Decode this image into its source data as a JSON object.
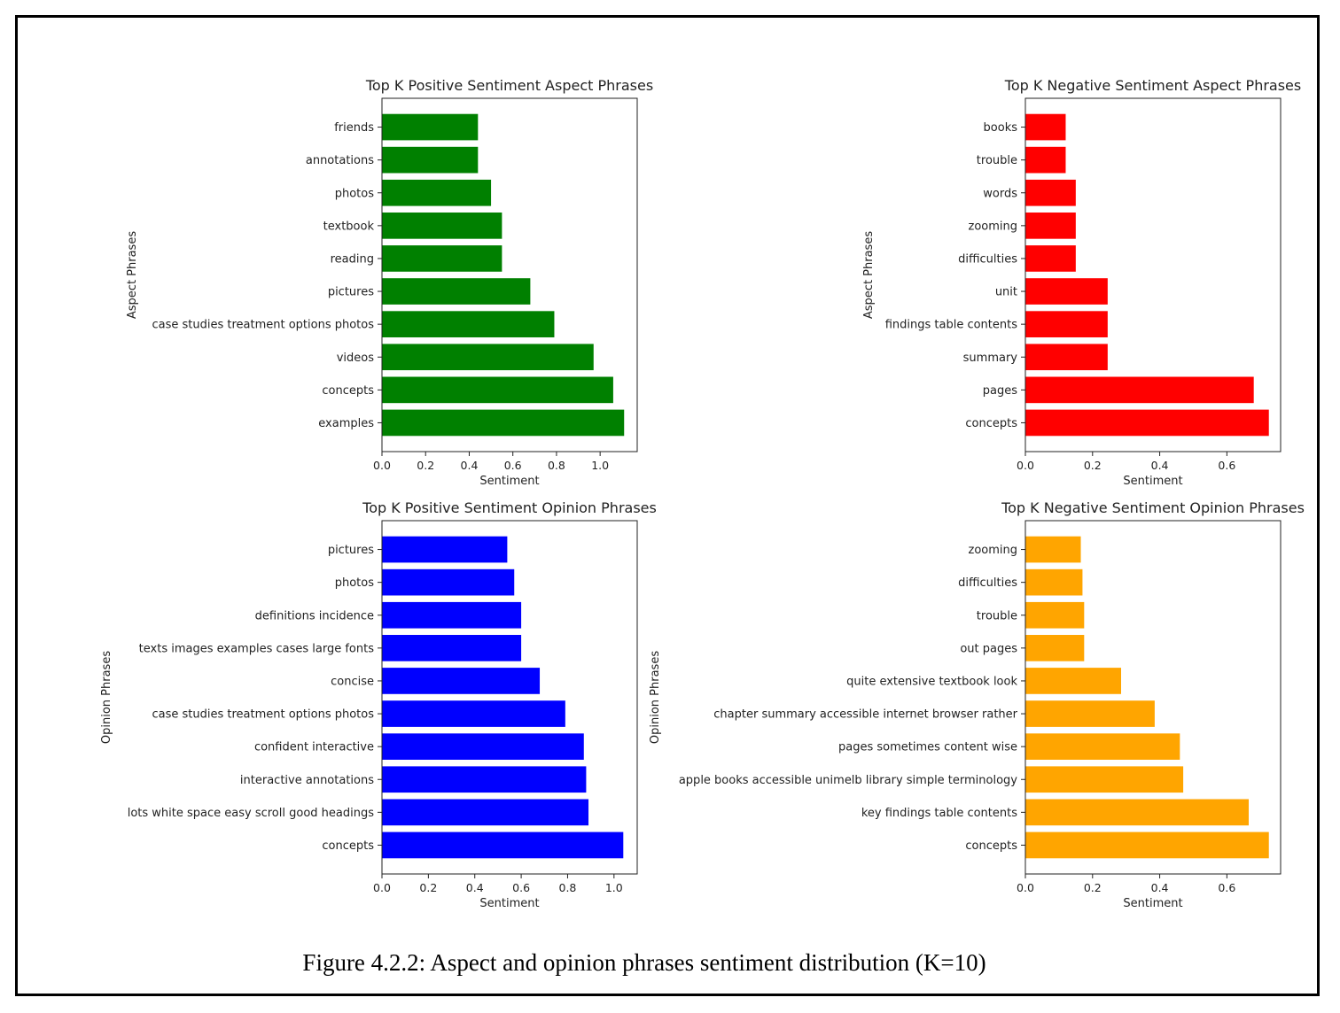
{
  "figure": {
    "caption": "Figure 4.2.2: Aspect and opinion phrases sentiment distribution (K=10)"
  },
  "chart_data": [
    {
      "type": "bar",
      "orientation": "horizontal",
      "title": "Top K Positive Sentiment Aspect Phrases",
      "xlabel": "Sentiment",
      "ylabel": "Aspect Phrases",
      "color": "#008000",
      "xlim": [
        0,
        1.17
      ],
      "xticks": [
        0.0,
        0.2,
        0.4,
        0.6,
        0.8,
        1.0
      ],
      "tick_labels": [
        "0.0",
        "0.2",
        "0.4",
        "0.6",
        "0.8",
        "1.0"
      ],
      "categories": [
        "friends",
        "annotations",
        "photos",
        "textbook",
        "reading",
        "pictures",
        "case studies treatment options photos",
        "videos",
        "concepts",
        "examples"
      ],
      "values": [
        0.44,
        0.44,
        0.5,
        0.55,
        0.55,
        0.68,
        0.79,
        0.97,
        1.06,
        1.11
      ]
    },
    {
      "type": "bar",
      "orientation": "horizontal",
      "title": "Top K Negative Sentiment Aspect Phrases",
      "xlabel": "Sentiment",
      "ylabel": "Aspect Phrases",
      "color": "#ff0000",
      "xlim": [
        0,
        0.76
      ],
      "xticks": [
        0.0,
        0.2,
        0.4,
        0.6
      ],
      "tick_labels": [
        "0.0",
        "0.2",
        "0.4",
        "0.6"
      ],
      "categories": [
        "books",
        "trouble",
        "words",
        "zooming",
        "difficulties",
        "unit",
        "findings table contents",
        "summary",
        "pages",
        "concepts"
      ],
      "values": [
        0.12,
        0.12,
        0.15,
        0.15,
        0.15,
        0.245,
        0.245,
        0.245,
        0.68,
        0.725
      ]
    },
    {
      "type": "bar",
      "orientation": "horizontal",
      "title": "Top K Positive Sentiment Opinion Phrases",
      "xlabel": "Sentiment",
      "ylabel": "Opinion Phrases",
      "color": "#0000ff",
      "xlim": [
        0,
        1.1
      ],
      "xticks": [
        0.0,
        0.2,
        0.4,
        0.6,
        0.8,
        1.0
      ],
      "tick_labels": [
        "0.0",
        "0.2",
        "0.4",
        "0.6",
        "0.8",
        "1.0"
      ],
      "categories": [
        "pictures",
        "photos",
        "definitions incidence",
        "texts images examples cases large fonts",
        "concise",
        "case studies treatment options photos",
        "confident interactive",
        "interactive annotations",
        "lots white space easy scroll good headings",
        "concepts"
      ],
      "values": [
        0.54,
        0.57,
        0.6,
        0.6,
        0.68,
        0.79,
        0.87,
        0.88,
        0.89,
        1.04
      ]
    },
    {
      "type": "bar",
      "orientation": "horizontal",
      "title": "Top K Negative Sentiment Opinion Phrases",
      "xlabel": "Sentiment",
      "ylabel": "Opinion Phrases",
      "color": "#ffa500",
      "xlim": [
        0,
        0.76
      ],
      "xticks": [
        0.0,
        0.2,
        0.4,
        0.6
      ],
      "tick_labels": [
        "0.0",
        "0.2",
        "0.4",
        "0.6"
      ],
      "categories": [
        "zooming",
        "difficulties",
        "trouble",
        "out pages",
        "quite extensive textbook look",
        "chapter summary accessible internet browser rather",
        "pages sometimes content wise",
        "apple books accessible unimelb library simple terminology",
        "key findings table contents",
        "concepts"
      ],
      "values": [
        0.165,
        0.17,
        0.175,
        0.175,
        0.285,
        0.385,
        0.46,
        0.47,
        0.665,
        0.725
      ]
    }
  ]
}
